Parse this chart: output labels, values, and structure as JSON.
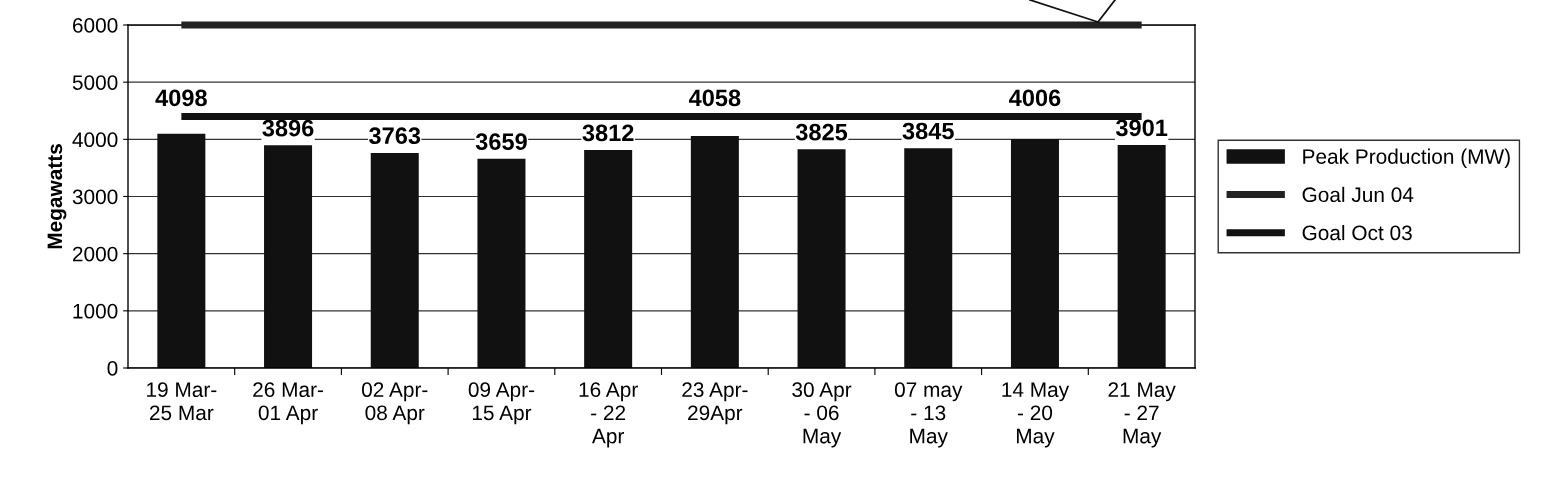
{
  "chart_data": {
    "type": "bar",
    "ylabel": "Megawatts",
    "categories": [
      "19 Mar-\n25 Mar",
      "26 Mar-\n01 Apr",
      "02 Apr-\n08 Apr",
      "09 Apr-\n15 Apr",
      "16 Apr\n- 22\nApr",
      "23 Apr-\n29Apr",
      "30 Apr\n- 06\nMay",
      "07 may\n- 13\nMay",
      "14 May\n- 20\nMay",
      "21 May\n- 27\nMay"
    ],
    "series": [
      {
        "name": "Peak Production (MW)",
        "color": "#111111",
        "values": [
          4098,
          3896,
          3763,
          3659,
          3812,
          4058,
          3825,
          3845,
          4006,
          3901
        ],
        "value_labels": [
          "4098",
          "3896",
          "3763",
          "3659",
          "3812",
          "4058",
          "3825",
          "3845",
          "4006",
          "3901"
        ]
      },
      {
        "name": "Goal Jun 04",
        "type": "line",
        "color": "#222222",
        "values": [
          6000,
          6000,
          6000,
          6000,
          6000,
          6000,
          6000,
          6000,
          6000,
          6000
        ]
      },
      {
        "name": "Goal Oct 03",
        "type": "line",
        "color": "#111111",
        "values": [
          4400,
          4400,
          4400,
          4400,
          4400,
          4400,
          4400,
          4400,
          4400,
          4400
        ]
      }
    ],
    "ylim": [
      0,
      6000
    ],
    "yticks": [
      0,
      1000,
      2000,
      3000,
      4000,
      5000,
      6000
    ],
    "grid": "y",
    "legend": "right",
    "marker": "none",
    "line_style": "solid"
  }
}
